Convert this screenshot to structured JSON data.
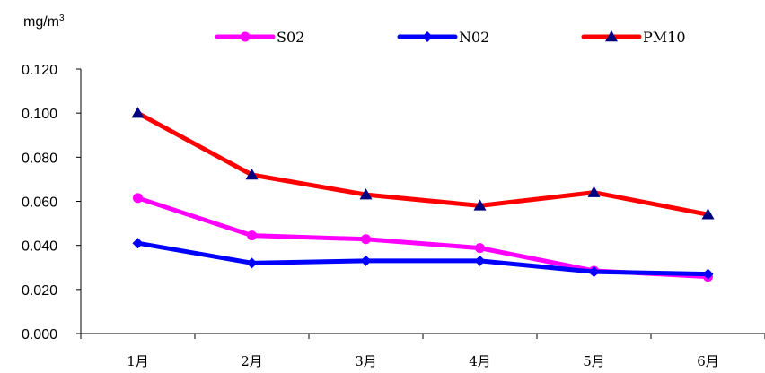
{
  "chart_data": {
    "type": "line",
    "unit_label": "mg/m",
    "unit_superscript": "3",
    "categories": [
      "1月",
      "2月",
      "3月",
      "4月",
      "5月",
      "6月"
    ],
    "ylim": [
      0,
      0.12
    ],
    "yticks": [
      "0.000",
      "0.020",
      "0.040",
      "0.060",
      "0.080",
      "0.100",
      "0.120"
    ],
    "grid": false,
    "legend_position": "top",
    "series": [
      {
        "name": "SO2",
        "label": "S02",
        "color": "#ff00ff",
        "marker": "circle",
        "values": [
          0.0615,
          0.0445,
          0.0428,
          0.0388,
          0.0285,
          0.0258
        ]
      },
      {
        "name": "NO2",
        "label": "N02",
        "color": "#0000ff",
        "marker": "diamond",
        "values": [
          0.041,
          0.032,
          0.033,
          0.033,
          0.028,
          0.027
        ]
      },
      {
        "name": "PM10",
        "label": "PM10",
        "color": "#ff0000",
        "marker": "triangle",
        "marker_color": "#000080",
        "values": [
          0.1,
          0.072,
          0.063,
          0.058,
          0.064,
          0.054
        ]
      }
    ]
  }
}
